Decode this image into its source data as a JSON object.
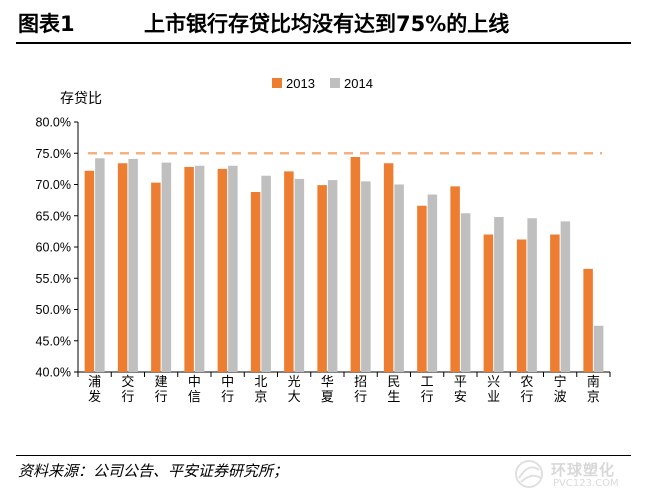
{
  "figure": {
    "label": "图表1",
    "title": "上市银行存贷比均没有达到75%的上线"
  },
  "source": "资料来源：公司公告、平安证券研究所；",
  "watermark": {
    "text": "环球塑化",
    "url": "PVC123.COM"
  },
  "colors": {
    "series_2013": "#ED7D31",
    "series_2014": "#BFBFBF",
    "threshold_line": "#F4B183",
    "axis": "#000000"
  },
  "chart_data": {
    "type": "bar",
    "ylabel": "存贷比",
    "ylim": [
      40,
      80
    ],
    "yticks": [
      "40.0%",
      "45.0%",
      "50.0%",
      "55.0%",
      "60.0%",
      "65.0%",
      "70.0%",
      "75.0%",
      "80.0%"
    ],
    "legend_position": "top-center",
    "grid": false,
    "reference_line": 75,
    "categories": [
      "浦发",
      "交行",
      "建行",
      "中信",
      "中行",
      "北京",
      "光大",
      "华夏",
      "招行",
      "民生",
      "工行",
      "平安",
      "兴业",
      "农行",
      "宁波",
      "南京"
    ],
    "series": [
      {
        "name": "2013",
        "values": [
          72.2,
          73.4,
          70.3,
          72.8,
          72.5,
          68.8,
          72.1,
          69.9,
          74.4,
          73.4,
          66.6,
          69.7,
          62.0,
          61.2,
          62.0,
          56.5
        ]
      },
      {
        "name": "2014",
        "values": [
          74.2,
          74.1,
          73.5,
          73.0,
          73.0,
          71.4,
          70.9,
          70.7,
          70.5,
          70.0,
          68.4,
          65.4,
          64.8,
          64.6,
          64.1,
          47.4
        ]
      }
    ]
  }
}
